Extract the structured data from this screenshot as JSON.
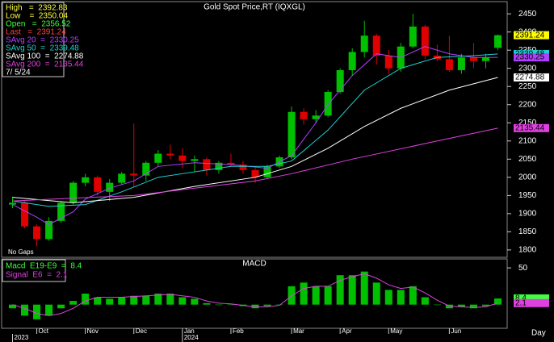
{
  "chart_data": {
    "type": "candlestick",
    "title": "Gold Spot Price,RT (IQXGL)",
    "note": "No Gaps",
    "x_unit_label": "Day",
    "ylim": [
      1782,
      2477
    ],
    "yticks": [
      1800,
      1850,
      1900,
      1950,
      2000,
      2050,
      2100,
      2150,
      2200,
      2250,
      2300,
      2350,
      2400,
      2450
    ],
    "xlim": [
      -0.5,
      40.5
    ],
    "xticks": [
      {
        "value": 2,
        "label": "Oct"
      },
      {
        "value": 6,
        "label": "Nov"
      },
      {
        "value": 10,
        "label": "Dec"
      },
      {
        "value": 14,
        "label": "Jan"
      },
      {
        "value": 18,
        "label": "Feb"
      },
      {
        "value": 23,
        "label": "Mar"
      },
      {
        "value": 27,
        "label": "Apr"
      },
      {
        "value": 31,
        "label": "May"
      },
      {
        "value": 36,
        "label": "Jun"
      }
    ],
    "years": [
      {
        "value": 0,
        "label": "2023"
      },
      {
        "value": 14,
        "label": "2024"
      }
    ],
    "up_color": "#00c000",
    "down_color": "#e00000",
    "candles": {
      "open": [
        1925,
        1930,
        1865,
        1830,
        1880,
        1930,
        1985,
        2000,
        1960,
        1985,
        2010,
        2005,
        2040,
        2065,
        2060,
        2045,
        2050,
        2020,
        2040,
        2035,
        2020,
        2000,
        2030,
        2055,
        2180,
        2160,
        2170,
        2235,
        2295,
        2345,
        2390,
        2335,
        2300,
        2360,
        2415,
        2335,
        2325,
        2295,
        2330,
        2320,
        2356.52
      ],
      "high": [
        1947,
        1935,
        1870,
        1890,
        1935,
        1990,
        2010,
        2005,
        1995,
        2015,
        2148,
        2045,
        2075,
        2090,
        2080,
        2060,
        2055,
        2045,
        2065,
        2045,
        2030,
        2035,
        2060,
        2195,
        2190,
        2185,
        2240,
        2300,
        2355,
        2431,
        2395,
        2350,
        2370,
        2450,
        2420,
        2365,
        2390,
        2340,
        2370,
        2340,
        2392.83
      ],
      "low": [
        1915,
        1860,
        1810,
        1825,
        1875,
        1925,
        1975,
        1950,
        1935,
        1980,
        1975,
        1990,
        2030,
        2050,
        2025,
        2015,
        2005,
        2010,
        2030,
        2010,
        1985,
        1995,
        2025,
        2050,
        2145,
        2150,
        2165,
        2230,
        2280,
        2330,
        2310,
        2285,
        2290,
        2355,
        2325,
        2320,
        2290,
        2285,
        2300,
        2300,
        2350.04
      ],
      "close": [
        1930,
        1865,
        1830,
        1880,
        1930,
        1985,
        2000,
        1960,
        1985,
        2010,
        2005,
        2040,
        2065,
        2060,
        2045,
        2050,
        2020,
        2040,
        2035,
        2020,
        2000,
        2030,
        2055,
        2180,
        2160,
        2170,
        2235,
        2295,
        2345,
        2390,
        2335,
        2300,
        2360,
        2415,
        2335,
        2325,
        2295,
        2330,
        2320,
        2330,
        2391.24
      ]
    },
    "series": [
      {
        "color": "#b040ff",
        "x": [
          0,
          2,
          3,
          5,
          6,
          8,
          10,
          12,
          15,
          18,
          21,
          23,
          25,
          26,
          28,
          30,
          32,
          34,
          36,
          38,
          40
        ],
        "values": [
          1925,
          1890,
          1870,
          1905,
          1940,
          1970,
          1990,
          2030,
          2040,
          2035,
          2025,
          2060,
          2150,
          2200,
          2280,
          2340,
          2330,
          2360,
          2340,
          2330,
          2330.25
        ]
      },
      {
        "color": "#20d0d0",
        "x": [
          0,
          3,
          6,
          9,
          12,
          15,
          18,
          21,
          23,
          26,
          29,
          32,
          35,
          38,
          40
        ],
        "values": [
          1935,
          1920,
          1925,
          1960,
          2000,
          2015,
          2030,
          2030,
          2045,
          2130,
          2240,
          2300,
          2330,
          2335,
          2339.48
        ]
      },
      {
        "color": "#ffffff",
        "x": [
          0,
          5,
          10,
          15,
          20,
          23,
          26,
          29,
          32,
          36,
          40
        ],
        "values": [
          1945,
          1930,
          1945,
          1975,
          2000,
          2030,
          2080,
          2140,
          2190,
          2240,
          2274.88
        ]
      },
      {
        "color": "#e040e0",
        "x": [
          0,
          10,
          20,
          23,
          28,
          35,
          40
        ],
        "values": [
          1935,
          1950,
          1990,
          2010,
          2050,
          2100,
          2135.44
        ]
      }
    ],
    "legend": [
      {
        "text": "High   =  2392.83",
        "color": "#ffff40"
      },
      {
        "text": "Low    =  2350.04",
        "color": "#ffff40"
      },
      {
        "text": "Open   =  2356.52",
        "color": "#40ff40"
      },
      {
        "text": "Last   =  2391.24",
        "color": "#ff4040"
      },
      {
        "text": "SAvg 20  =  2330.25",
        "color": "#b040ff"
      },
      {
        "text": "SAvg 50  =  2339.48",
        "color": "#20d0d0"
      },
      {
        "text": "SAvg 100  =  2274.88",
        "color": "#ffffff"
      },
      {
        "text": "SAvg 200  =  2135.44",
        "color": "#e040e0"
      },
      {
        "text": "7/ 5/24",
        "color": "#ffffff"
      }
    ],
    "last_markers": [
      {
        "value": 2391.24,
        "color": "#ffff00"
      },
      {
        "value": 2339.48,
        "color": "#20d0d0"
      },
      {
        "value": 2330.25,
        "color": "#b040ff"
      },
      {
        "value": 2274.88,
        "color": "#ffffff"
      },
      {
        "value": 2135.44,
        "color": "#e040e0"
      }
    ],
    "macd": {
      "title": "MACD",
      "ylim": [
        -30,
        60
      ],
      "yticks": [
        50
      ],
      "histogram": {
        "color": "#00c000",
        "values": [
          -5,
          -15,
          -20,
          -15,
          -5,
          5,
          15,
          10,
          8,
          10,
          12,
          12,
          15,
          15,
          10,
          8,
          2,
          0,
          0,
          -2,
          -5,
          -2,
          0,
          25,
          30,
          25,
          25,
          40,
          40,
          45,
          30,
          20,
          20,
          25,
          10,
          0,
          -5,
          -3,
          -5,
          -2,
          8.4
        ]
      },
      "signal": {
        "color": "#e040e0",
        "values": [
          0,
          -5,
          -12,
          -15,
          -12,
          -5,
          5,
          10,
          10,
          10,
          11,
          12,
          13,
          14,
          12,
          10,
          5,
          2,
          1,
          -1,
          -3,
          -3,
          -1,
          12,
          22,
          25,
          25,
          33,
          38,
          42,
          36,
          27,
          22,
          24,
          16,
          6,
          -2,
          -3,
          -4,
          -3,
          2.1
        ]
      },
      "legend": [
        {
          "text": "Macd  E19-E9  =  8.4",
          "color": "#40ff40"
        },
        {
          "text": "Signal  E6  =  2.1",
          "color": "#e040e0"
        }
      ],
      "last_markers": [
        {
          "value": 8.4,
          "color": "#40ff40"
        },
        {
          "value": 2.1,
          "color": "#e040e0"
        }
      ]
    }
  }
}
